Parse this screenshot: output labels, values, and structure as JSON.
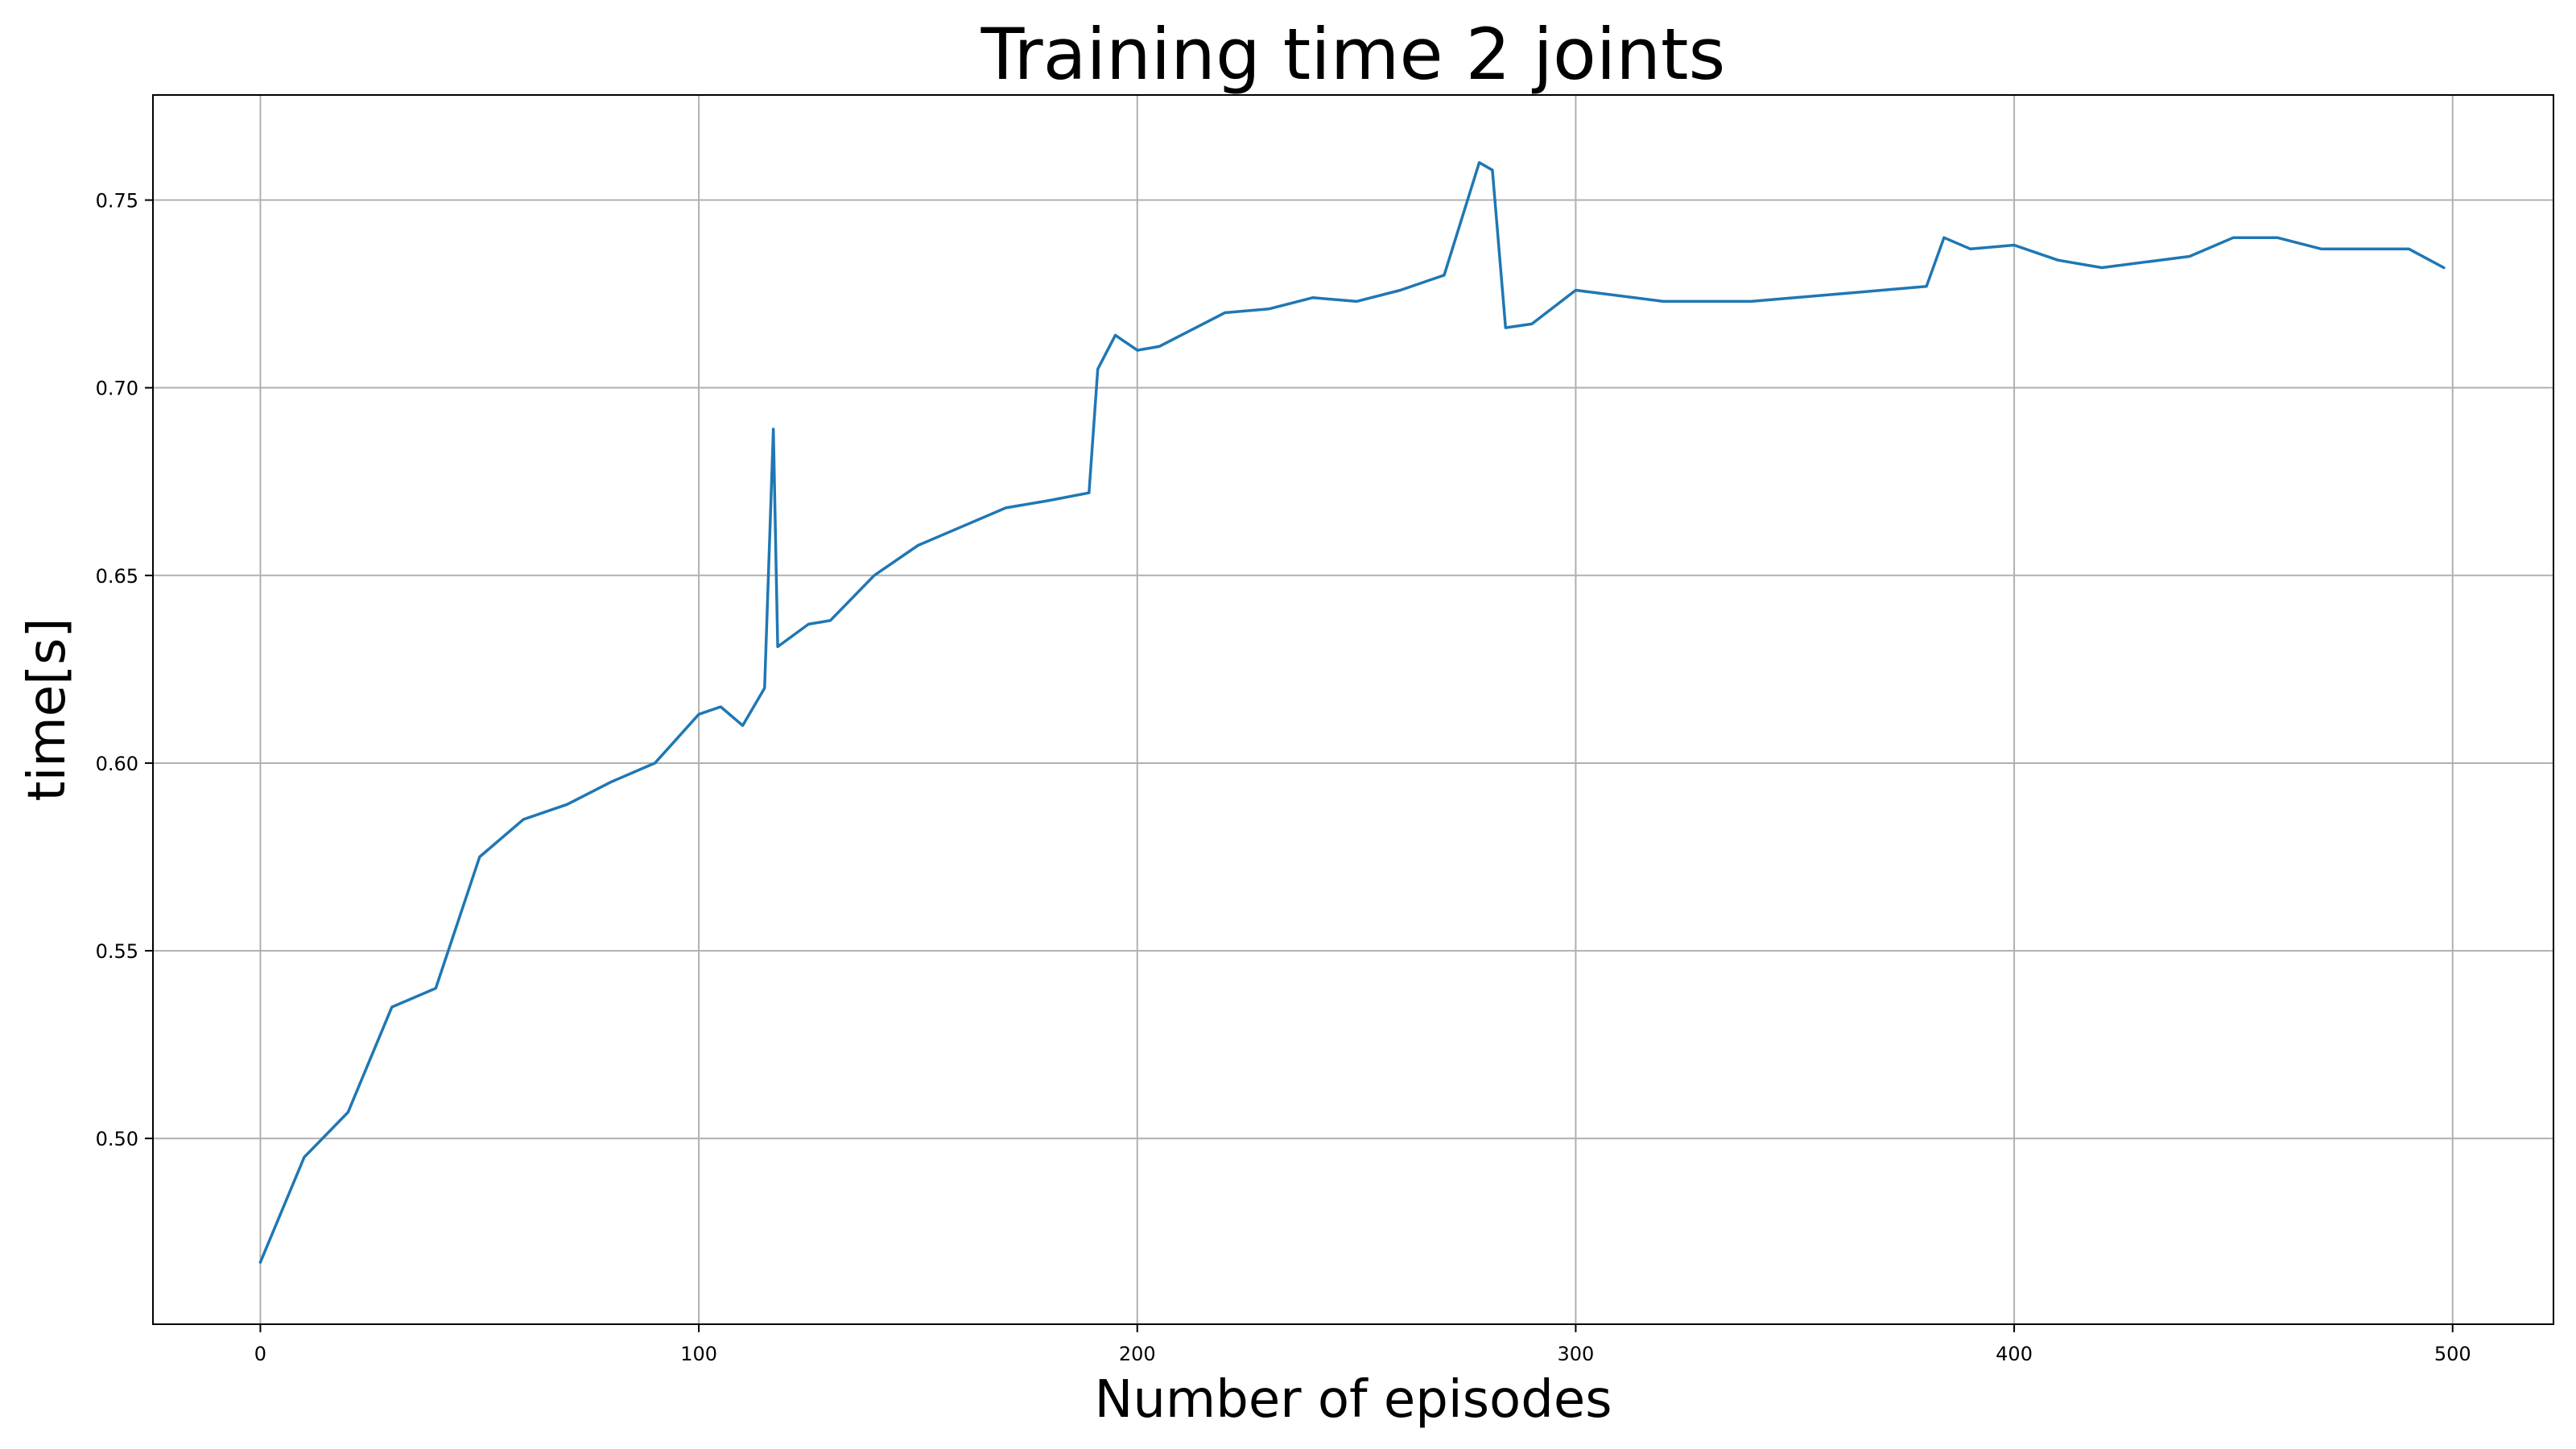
{
  "chart_data": {
    "type": "line",
    "title": "Training time 2 joints",
    "xlabel": "Number of episodes",
    "ylabel": "time[s]",
    "xlim": [
      -24.5,
      523
    ],
    "ylim": [
      0.4505,
      0.778
    ],
    "xticks": [
      0,
      100,
      200,
      300,
      400,
      500
    ],
    "xtick_labels": [
      "0",
      "100",
      "200",
      "300",
      "400",
      "500"
    ],
    "yticks": [
      0.5,
      0.55,
      0.6,
      0.65,
      0.7,
      0.75
    ],
    "ytick_labels": [
      "0.50",
      "0.55",
      "0.60",
      "0.65",
      "0.70",
      "0.75"
    ],
    "grid": true,
    "series": [
      {
        "color": "#1f77b4",
        "x": [
          0,
          10,
          20,
          30,
          40,
          50,
          60,
          70,
          80,
          90,
          100,
          105,
          110,
          115,
          117,
          118,
          125,
          130,
          140,
          150,
          160,
          170,
          180,
          189,
          191,
          195,
          200,
          205,
          210,
          220,
          230,
          240,
          250,
          260,
          270,
          278,
          281,
          284,
          290,
          300,
          320,
          340,
          360,
          380,
          384,
          390,
          400,
          410,
          420,
          440,
          450,
          460,
          470,
          480,
          490,
          498
        ],
        "values": [
          0.467,
          0.495,
          0.507,
          0.535,
          0.54,
          0.575,
          0.585,
          0.589,
          0.595,
          0.6,
          0.613,
          0.615,
          0.61,
          0.62,
          0.689,
          0.631,
          0.637,
          0.638,
          0.65,
          0.658,
          0.663,
          0.668,
          0.67,
          0.672,
          0.705,
          0.714,
          0.71,
          0.711,
          0.714,
          0.72,
          0.721,
          0.724,
          0.723,
          0.726,
          0.73,
          0.76,
          0.758,
          0.716,
          0.717,
          0.726,
          0.723,
          0.723,
          0.725,
          0.727,
          0.74,
          0.737,
          0.738,
          0.734,
          0.732,
          0.735,
          0.74,
          0.74,
          0.737,
          0.737,
          0.737,
          0.732
        ]
      }
    ]
  }
}
